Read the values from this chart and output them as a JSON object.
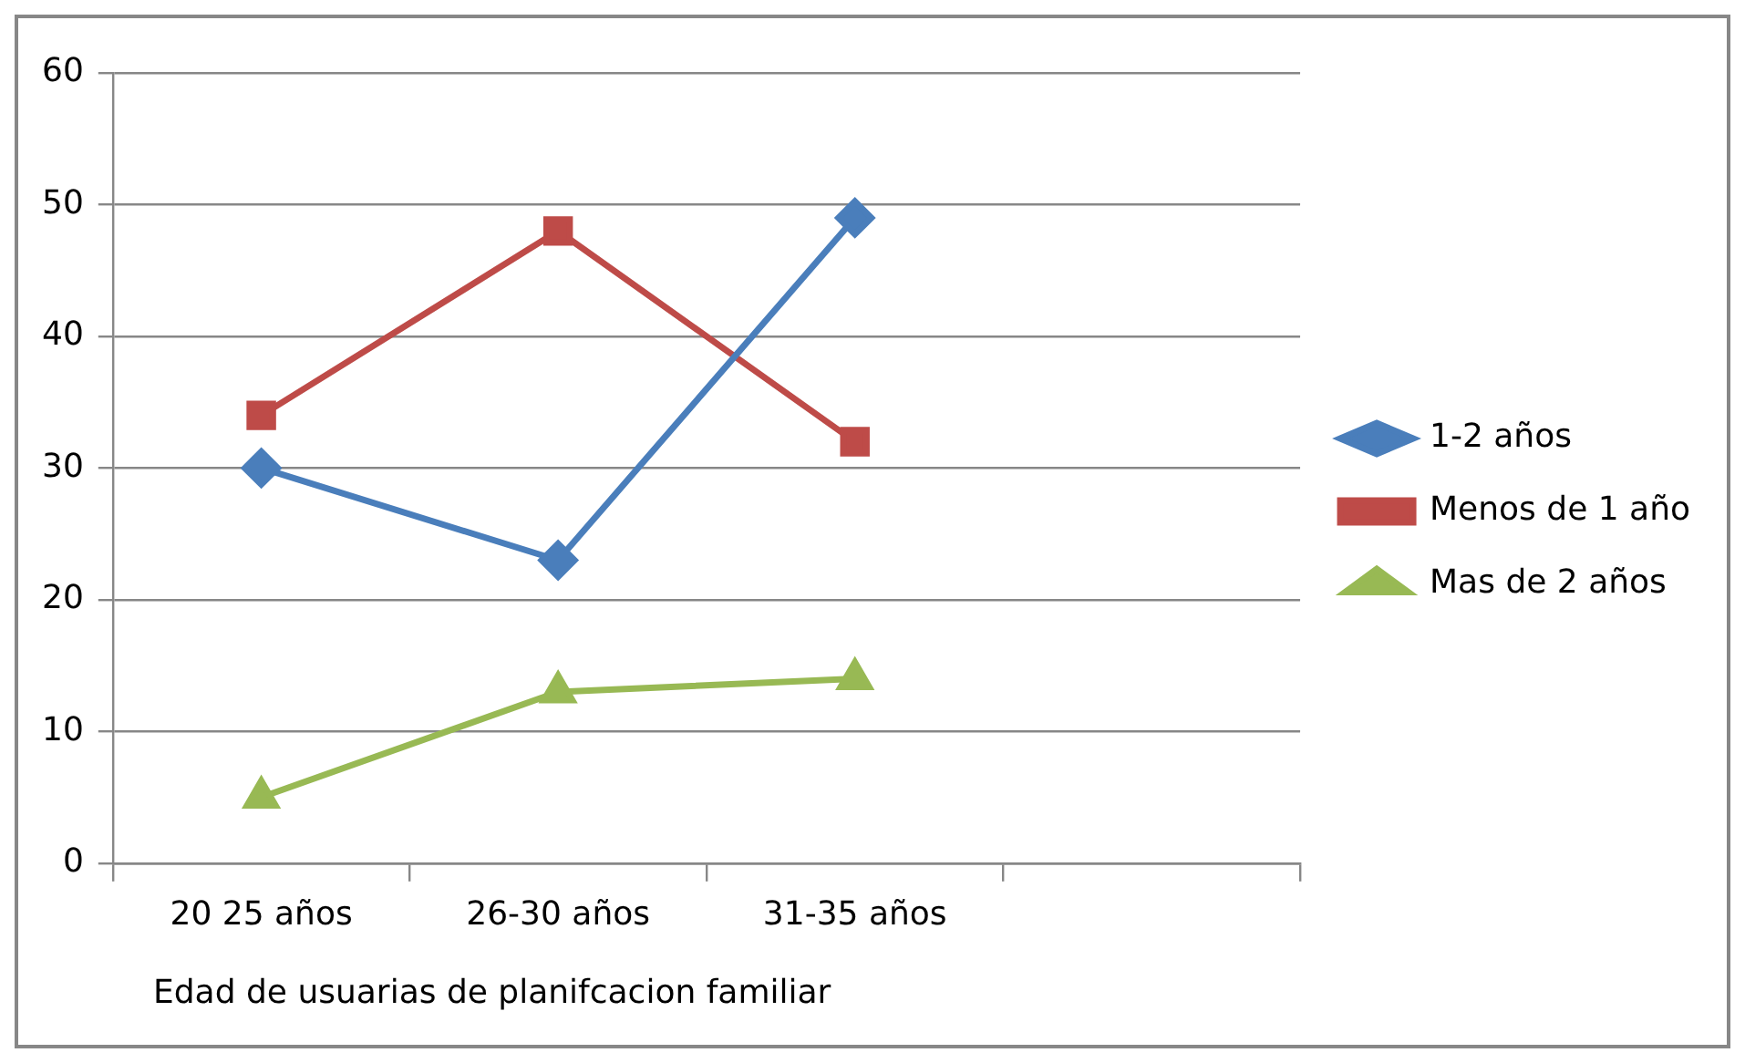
{
  "chart_data": {
    "type": "line",
    "xlabel": "Edad de usuarias de planifcacion familiar",
    "categories": [
      "20 25 años",
      "26-30 años",
      "31-35 años",
      null
    ],
    "series": [
      {
        "name": "1-2 años",
        "color": "#4a7ebb",
        "marker": "diamond",
        "values": [
          30,
          23,
          49,
          null
        ]
      },
      {
        "name": "Menos de 1 año",
        "color": "#be4b48",
        "marker": "square",
        "values": [
          34,
          48,
          32,
          null
        ]
      },
      {
        "name": "Mas de 2 años",
        "color": "#98b954",
        "marker": "triangle",
        "values": [
          5,
          13,
          14,
          null
        ]
      }
    ],
    "ylim": [
      0,
      60
    ],
    "yticks": [
      0,
      10,
      20,
      30,
      40,
      50,
      60
    ],
    "grid": "y",
    "legend": "right",
    "line_style": "solid"
  }
}
